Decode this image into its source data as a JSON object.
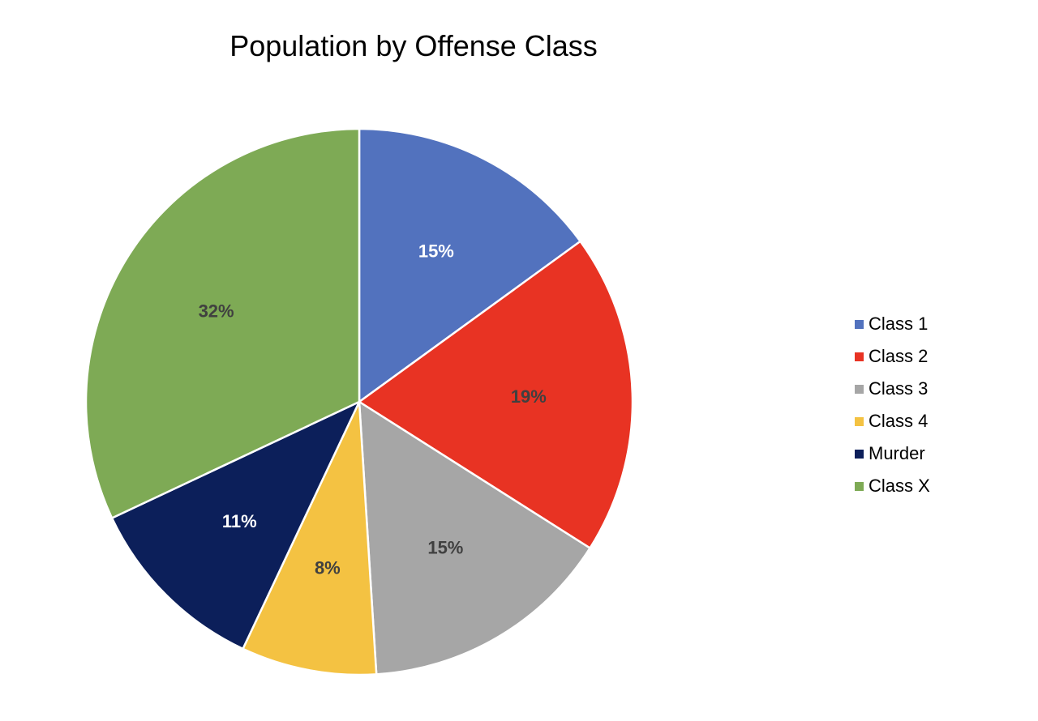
{
  "chart_data": {
    "type": "pie",
    "title": "Population by Offense Class",
    "categories": [
      "Class 1",
      "Class 2",
      "Class 3",
      "Class 4",
      "Murder",
      "Class X"
    ],
    "values": [
      15,
      19,
      15,
      8,
      11,
      32
    ],
    "labels": [
      "15%",
      "19%",
      "15%",
      "8%",
      "11%",
      "32%"
    ],
    "colors": [
      "#5272BE",
      "#E83323",
      "#A6A6A6",
      "#F4C242",
      "#0C1F5A",
      "#7EAA55"
    ],
    "label_colors": [
      "#ffffff",
      "#404040",
      "#404040",
      "#404040",
      "#ffffff",
      "#404040"
    ],
    "start_angle_deg": 0,
    "direction": "clockwise",
    "legend_position": "right"
  }
}
